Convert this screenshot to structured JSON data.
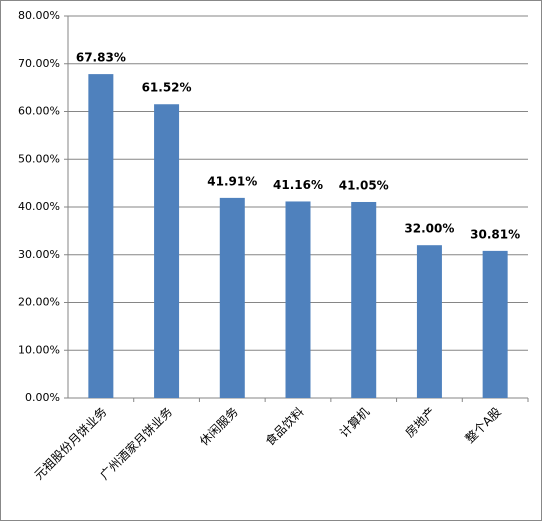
{
  "chart_data": {
    "type": "bar",
    "categories": [
      "元祖股份月饼业务",
      "广州酒家月饼业务",
      "休闲服务",
      "食品饮料",
      "计算机",
      "房地产",
      "整个A股"
    ],
    "values": [
      67.83,
      61.52,
      41.91,
      41.16,
      41.05,
      32.0,
      30.81
    ],
    "value_labels": [
      "67.83%",
      "61.52%",
      "41.91%",
      "41.16%",
      "41.05%",
      "32.00%",
      "30.81%"
    ],
    "color": "#4f81bd",
    "ylim": [
      0,
      80
    ],
    "yticks": [
      {
        "value": 0,
        "label": "0.00%"
      },
      {
        "value": 10,
        "label": "10.00%"
      },
      {
        "value": 20,
        "label": "20.00%"
      },
      {
        "value": 30,
        "label": "30.00%"
      },
      {
        "value": 40,
        "label": "40.00%"
      },
      {
        "value": 50,
        "label": "50.00%"
      },
      {
        "value": 60,
        "label": "60.00%"
      },
      {
        "value": 70,
        "label": "70.00%"
      },
      {
        "value": 80,
        "label": "80.00%"
      }
    ],
    "grid": true
  }
}
